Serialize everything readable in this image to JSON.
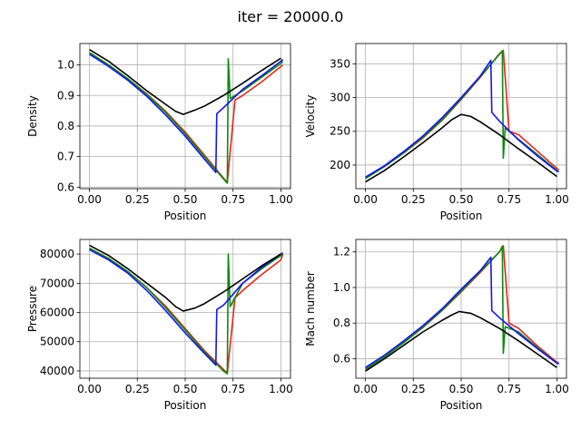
{
  "title": "iter = 20000.0",
  "colors": {
    "red": "#e8241b",
    "green": "#0a8a0a",
    "blue": "#1414ee",
    "black": "#000000",
    "grid": "#b0b0b0"
  },
  "chart_data": [
    {
      "type": "line",
      "xlabel": "Position",
      "ylabel": "Density",
      "xlim": [
        -0.05,
        1.05
      ],
      "ylim": [
        0.595,
        1.07
      ],
      "xticks": [
        "0.00",
        "0.25",
        "0.50",
        "0.75",
        "1.00"
      ],
      "xtick_values": [
        0,
        0.25,
        0.5,
        0.75,
        1.0
      ],
      "yticks": [
        "0.6",
        "0.7",
        "0.8",
        "0.9",
        "1.0"
      ],
      "ytick_values": [
        0.6,
        0.7,
        0.8,
        0.9,
        1.0
      ],
      "grid": true,
      "series": [
        {
          "color": "red",
          "x": [
            0,
            0.1,
            0.2,
            0.3,
            0.4,
            0.5,
            0.6,
            0.7,
            0.72,
            0.76,
            0.8,
            0.9,
            1.0,
            1.01
          ],
          "y": [
            1.04,
            1.0,
            0.955,
            0.905,
            0.847,
            0.78,
            0.705,
            0.63,
            0.615,
            0.885,
            0.9,
            0.945,
            0.995,
            1.0
          ]
        },
        {
          "color": "green",
          "x": [
            0,
            0.1,
            0.2,
            0.3,
            0.4,
            0.5,
            0.6,
            0.7,
            0.72,
            0.725,
            0.735,
            0.8,
            0.9,
            1.0,
            1.01
          ],
          "y": [
            1.04,
            1.0,
            0.955,
            0.903,
            0.843,
            0.775,
            0.7,
            0.627,
            0.613,
            1.02,
            0.89,
            0.915,
            0.96,
            1.005,
            1.012
          ]
        },
        {
          "color": "blue",
          "x": [
            0,
            0.1,
            0.2,
            0.3,
            0.4,
            0.5,
            0.6,
            0.66,
            0.665,
            0.7,
            0.8,
            0.9,
            1.0,
            1.01
          ],
          "y": [
            1.035,
            0.995,
            0.95,
            0.897,
            0.835,
            0.767,
            0.692,
            0.648,
            0.84,
            0.86,
            0.92,
            0.965,
            1.012,
            1.018
          ]
        },
        {
          "color": "black",
          "x": [
            0,
            0.1,
            0.2,
            0.3,
            0.4,
            0.45,
            0.49,
            0.55,
            0.6,
            0.7,
            0.8,
            0.9,
            1.0
          ],
          "y": [
            1.05,
            1.012,
            0.965,
            0.915,
            0.87,
            0.848,
            0.838,
            0.852,
            0.865,
            0.9,
            0.94,
            0.982,
            1.022
          ]
        }
      ]
    },
    {
      "type": "line",
      "xlabel": "Position",
      "ylabel": "Velocity",
      "xlim": [
        -0.05,
        1.05
      ],
      "ylim": [
        165,
        380
      ],
      "xticks": [
        "0.00",
        "0.25",
        "0.50",
        "0.75",
        "1.00"
      ],
      "xtick_values": [
        0,
        0.25,
        0.5,
        0.75,
        1.0
      ],
      "yticks": [
        "200",
        "250",
        "300",
        "350"
      ],
      "ytick_values": [
        200,
        250,
        300,
        350
      ],
      "grid": true,
      "series": [
        {
          "color": "red",
          "x": [
            0,
            0.1,
            0.2,
            0.3,
            0.4,
            0.5,
            0.6,
            0.7,
            0.72,
            0.75,
            0.8,
            0.9,
            1.0,
            1.01
          ],
          "y": [
            180,
            198,
            218,
            240,
            266,
            297,
            330,
            365,
            370,
            250,
            245,
            220,
            195,
            193
          ]
        },
        {
          "color": "green",
          "x": [
            0,
            0.1,
            0.2,
            0.3,
            0.4,
            0.5,
            0.6,
            0.7,
            0.715,
            0.72,
            0.73,
            0.8,
            0.9,
            1.0,
            1.01
          ],
          "y": [
            180,
            198,
            218,
            241,
            267,
            298,
            331,
            364,
            369,
            210,
            255,
            238,
            215,
            192,
            190
          ]
        },
        {
          "color": "blue",
          "x": [
            0,
            0.1,
            0.2,
            0.3,
            0.4,
            0.5,
            0.6,
            0.655,
            0.66,
            0.7,
            0.8,
            0.9,
            1.0,
            1.01
          ],
          "y": [
            182,
            199,
            220,
            243,
            270,
            300,
            332,
            355,
            278,
            265,
            237,
            213,
            191,
            190
          ]
        },
        {
          "color": "black",
          "x": [
            0,
            0.1,
            0.2,
            0.3,
            0.4,
            0.45,
            0.5,
            0.55,
            0.6,
            0.7,
            0.8,
            0.9,
            1.0
          ],
          "y": [
            175,
            192,
            212,
            233,
            255,
            267,
            275,
            272,
            264,
            245,
            224,
            204,
            183
          ]
        }
      ]
    },
    {
      "type": "line",
      "xlabel": "Position",
      "ylabel": "Pressure",
      "xlim": [
        -0.05,
        1.05
      ],
      "ylim": [
        37500,
        85000
      ],
      "xticks": [
        "0.00",
        "0.25",
        "0.50",
        "0.75",
        "1.00"
      ],
      "xtick_values": [
        0,
        0.25,
        0.5,
        0.75,
        1.0
      ],
      "yticks": [
        "40000",
        "50000",
        "60000",
        "70000",
        "80000"
      ],
      "ytick_values": [
        40000,
        50000,
        60000,
        70000,
        80000
      ],
      "grid": true,
      "series": [
        {
          "color": "red",
          "x": [
            0,
            0.1,
            0.2,
            0.3,
            0.4,
            0.5,
            0.6,
            0.7,
            0.72,
            0.76,
            0.8,
            0.9,
            1.0,
            1.01
          ],
          "y": [
            82000,
            78500,
            74000,
            68500,
            62000,
            54500,
            47000,
            40500,
            39200,
            65000,
            67500,
            73000,
            78000,
            80000
          ]
        },
        {
          "color": "green",
          "x": [
            0,
            0.1,
            0.2,
            0.3,
            0.4,
            0.5,
            0.6,
            0.7,
            0.72,
            0.725,
            0.735,
            0.8,
            0.9,
            1.0,
            1.01
          ],
          "y": [
            82000,
            78500,
            74000,
            68500,
            61500,
            54000,
            46500,
            40000,
            39000,
            80000,
            62000,
            70000,
            75000,
            79500,
            80000
          ]
        },
        {
          "color": "blue",
          "x": [
            0,
            0.1,
            0.2,
            0.3,
            0.4,
            0.5,
            0.6,
            0.66,
            0.665,
            0.7,
            0.8,
            0.9,
            1.0,
            1.01
          ],
          "y": [
            81500,
            78000,
            73500,
            67500,
            60500,
            53000,
            46000,
            42000,
            61000,
            62500,
            70000,
            75500,
            80000,
            80500
          ]
        },
        {
          "color": "black",
          "x": [
            0,
            0.1,
            0.2,
            0.3,
            0.4,
            0.45,
            0.49,
            0.55,
            0.6,
            0.7,
            0.8,
            0.9,
            1.0
          ],
          "y": [
            83000,
            79500,
            75000,
            70000,
            65000,
            62000,
            60500,
            61500,
            63000,
            67000,
            71500,
            76000,
            80000
          ]
        }
      ]
    },
    {
      "type": "line",
      "xlabel": "Position",
      "ylabel": "Mach number",
      "xlim": [
        -0.05,
        1.05
      ],
      "ylim": [
        0.49,
        1.27
      ],
      "xticks": [
        "0.00",
        "0.25",
        "0.50",
        "0.75",
        "1.00"
      ],
      "xtick_values": [
        0,
        0.25,
        0.5,
        0.75,
        1.0
      ],
      "yticks": [
        "0.6",
        "0.8",
        "1.0",
        "1.2"
      ],
      "ytick_values": [
        0.6,
        0.8,
        1.0,
        1.2
      ],
      "grid": true,
      "series": [
        {
          "color": "red",
          "x": [
            0,
            0.1,
            0.2,
            0.3,
            0.4,
            0.5,
            0.6,
            0.7,
            0.72,
            0.75,
            0.8,
            0.9,
            1.0,
            1.01
          ],
          "y": [
            0.54,
            0.61,
            0.69,
            0.775,
            0.87,
            0.975,
            1.085,
            1.2,
            1.235,
            0.8,
            0.77,
            0.67,
            0.58,
            0.575
          ]
        },
        {
          "color": "green",
          "x": [
            0,
            0.1,
            0.2,
            0.3,
            0.4,
            0.5,
            0.6,
            0.7,
            0.715,
            0.72,
            0.73,
            0.8,
            0.9,
            1.0,
            1.01
          ],
          "y": [
            0.54,
            0.61,
            0.69,
            0.777,
            0.872,
            0.98,
            1.09,
            1.2,
            1.232,
            0.63,
            0.78,
            0.75,
            0.66,
            0.575,
            0.57
          ]
        },
        {
          "color": "blue",
          "x": [
            0,
            0.1,
            0.2,
            0.3,
            0.4,
            0.5,
            0.6,
            0.655,
            0.66,
            0.7,
            0.8,
            0.9,
            1.0,
            1.01
          ],
          "y": [
            0.55,
            0.62,
            0.7,
            0.785,
            0.88,
            0.99,
            1.095,
            1.17,
            0.87,
            0.83,
            0.74,
            0.655,
            0.575,
            0.57
          ]
        },
        {
          "color": "black",
          "x": [
            0,
            0.1,
            0.2,
            0.3,
            0.4,
            0.45,
            0.49,
            0.55,
            0.6,
            0.7,
            0.8,
            0.9,
            1.0
          ],
          "y": [
            0.53,
            0.6,
            0.675,
            0.75,
            0.815,
            0.845,
            0.865,
            0.855,
            0.83,
            0.77,
            0.7,
            0.625,
            0.55
          ]
        }
      ]
    }
  ]
}
